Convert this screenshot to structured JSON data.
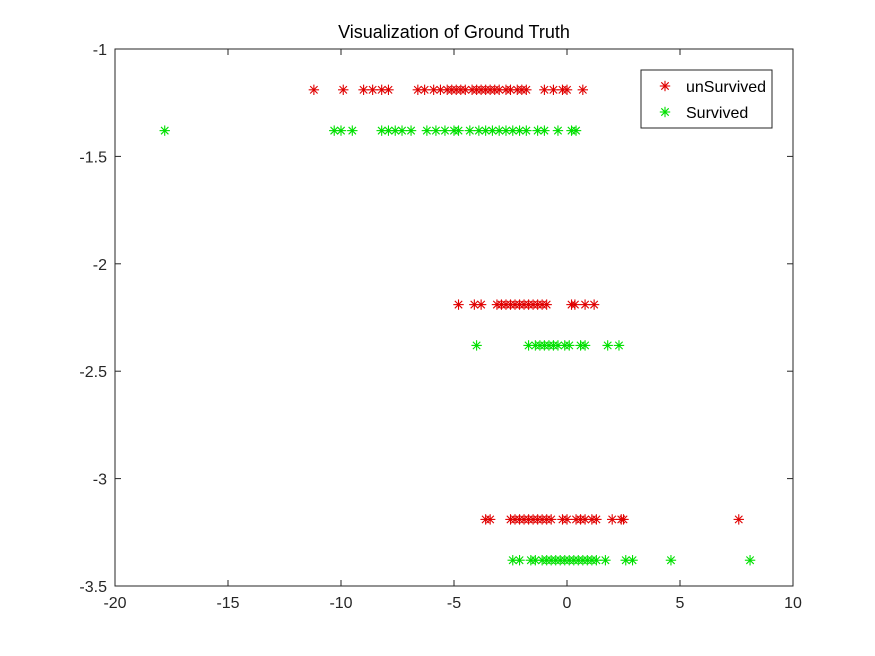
{
  "chart_data": {
    "type": "scatter",
    "title": "Visualization of Ground Truth",
    "xlabel": "",
    "ylabel": "",
    "xlim": [
      -20,
      10
    ],
    "ylim": [
      -3.5,
      -1
    ],
    "x_ticks": [
      -20,
      -15,
      -10,
      -5,
      0,
      5,
      10
    ],
    "y_ticks": [
      -1,
      -1.5,
      -2,
      -2.5,
      -3,
      -3.5
    ],
    "x_tick_labels": [
      "-20",
      "-15",
      "-10",
      "-5",
      "0",
      "5",
      "10"
    ],
    "y_tick_labels": [
      "-1",
      "-1.5",
      "-2",
      "-2.5",
      "-3",
      "-3.5"
    ],
    "grid": false,
    "legend_position": "top-right",
    "marker": "asterisk",
    "series": [
      {
        "name": "unSurvived",
        "color": "#e00000",
        "points": [
          [
            -11.2,
            -1.19
          ],
          [
            -9.9,
            -1.19
          ],
          [
            -9.0,
            -1.19
          ],
          [
            -8.6,
            -1.19
          ],
          [
            -8.2,
            -1.19
          ],
          [
            -7.9,
            -1.19
          ],
          [
            -6.6,
            -1.19
          ],
          [
            -6.3,
            -1.19
          ],
          [
            -5.9,
            -1.19
          ],
          [
            -5.6,
            -1.19
          ],
          [
            -5.3,
            -1.19
          ],
          [
            -5.1,
            -1.19
          ],
          [
            -4.9,
            -1.19
          ],
          [
            -4.7,
            -1.19
          ],
          [
            -4.5,
            -1.19
          ],
          [
            -4.2,
            -1.19
          ],
          [
            -4.0,
            -1.19
          ],
          [
            -3.8,
            -1.19
          ],
          [
            -3.6,
            -1.19
          ],
          [
            -3.4,
            -1.19
          ],
          [
            -3.2,
            -1.19
          ],
          [
            -3.0,
            -1.19
          ],
          [
            -2.7,
            -1.19
          ],
          [
            -2.5,
            -1.19
          ],
          [
            -2.2,
            -1.19
          ],
          [
            -2.0,
            -1.19
          ],
          [
            -1.8,
            -1.19
          ],
          [
            -1.0,
            -1.19
          ],
          [
            -0.6,
            -1.19
          ],
          [
            -0.2,
            -1.19
          ],
          [
            0.0,
            -1.19
          ],
          [
            0.7,
            -1.19
          ],
          [
            -4.8,
            -2.19
          ],
          [
            -4.1,
            -2.19
          ],
          [
            -3.8,
            -2.19
          ],
          [
            -3.1,
            -2.19
          ],
          [
            -2.9,
            -2.19
          ],
          [
            -2.7,
            -2.19
          ],
          [
            -2.5,
            -2.19
          ],
          [
            -2.3,
            -2.19
          ],
          [
            -2.1,
            -2.19
          ],
          [
            -1.9,
            -2.19
          ],
          [
            -1.7,
            -2.19
          ],
          [
            -1.5,
            -2.19
          ],
          [
            -1.3,
            -2.19
          ],
          [
            -1.1,
            -2.19
          ],
          [
            -0.9,
            -2.19
          ],
          [
            0.2,
            -2.19
          ],
          [
            0.35,
            -2.19
          ],
          [
            0.8,
            -2.19
          ],
          [
            1.2,
            -2.19
          ],
          [
            -3.6,
            -3.19
          ],
          [
            -3.4,
            -3.19
          ],
          [
            -2.5,
            -3.19
          ],
          [
            -2.3,
            -3.19
          ],
          [
            -2.1,
            -3.19
          ],
          [
            -1.9,
            -3.19
          ],
          [
            -1.7,
            -3.19
          ],
          [
            -1.5,
            -3.19
          ],
          [
            -1.3,
            -3.19
          ],
          [
            -1.1,
            -3.19
          ],
          [
            -0.9,
            -3.19
          ],
          [
            -0.7,
            -3.19
          ],
          [
            -0.2,
            -3.19
          ],
          [
            0.0,
            -3.19
          ],
          [
            0.4,
            -3.19
          ],
          [
            0.6,
            -3.19
          ],
          [
            0.8,
            -3.19
          ],
          [
            1.1,
            -3.19
          ],
          [
            1.3,
            -3.19
          ],
          [
            2.0,
            -3.19
          ],
          [
            2.4,
            -3.19
          ],
          [
            2.5,
            -3.19
          ],
          [
            7.6,
            -3.19
          ]
        ]
      },
      {
        "name": "Survived",
        "color": "#00e000",
        "points": [
          [
            -17.8,
            -1.38
          ],
          [
            -10.3,
            -1.38
          ],
          [
            -10.0,
            -1.38
          ],
          [
            -9.5,
            -1.38
          ],
          [
            -8.2,
            -1.38
          ],
          [
            -7.9,
            -1.38
          ],
          [
            -7.6,
            -1.38
          ],
          [
            -7.3,
            -1.38
          ],
          [
            -6.9,
            -1.38
          ],
          [
            -6.2,
            -1.38
          ],
          [
            -5.8,
            -1.38
          ],
          [
            -5.4,
            -1.38
          ],
          [
            -5.0,
            -1.38
          ],
          [
            -4.8,
            -1.38
          ],
          [
            -4.3,
            -1.38
          ],
          [
            -3.9,
            -1.38
          ],
          [
            -3.6,
            -1.38
          ],
          [
            -3.3,
            -1.38
          ],
          [
            -3.0,
            -1.38
          ],
          [
            -2.7,
            -1.38
          ],
          [
            -2.4,
            -1.38
          ],
          [
            -2.1,
            -1.38
          ],
          [
            -1.8,
            -1.38
          ],
          [
            -1.3,
            -1.38
          ],
          [
            -1.0,
            -1.38
          ],
          [
            -0.4,
            -1.38
          ],
          [
            0.2,
            -1.38
          ],
          [
            0.4,
            -1.38
          ],
          [
            -4.0,
            -2.38
          ],
          [
            -1.7,
            -2.38
          ],
          [
            -1.4,
            -2.38
          ],
          [
            -1.2,
            -2.38
          ],
          [
            -1.0,
            -2.38
          ],
          [
            -0.8,
            -2.38
          ],
          [
            -0.6,
            -2.38
          ],
          [
            -0.4,
            -2.38
          ],
          [
            -0.1,
            -2.38
          ],
          [
            0.1,
            -2.38
          ],
          [
            0.6,
            -2.38
          ],
          [
            0.8,
            -2.38
          ],
          [
            1.8,
            -2.38
          ],
          [
            2.3,
            -2.38
          ],
          [
            -2.4,
            -3.38
          ],
          [
            -2.1,
            -3.38
          ],
          [
            -1.6,
            -3.38
          ],
          [
            -1.4,
            -3.38
          ],
          [
            -1.1,
            -3.38
          ],
          [
            -0.9,
            -3.38
          ],
          [
            -0.7,
            -3.38
          ],
          [
            -0.5,
            -3.38
          ],
          [
            -0.3,
            -3.38
          ],
          [
            -0.1,
            -3.38
          ],
          [
            0.1,
            -3.38
          ],
          [
            0.3,
            -3.38
          ],
          [
            0.5,
            -3.38
          ],
          [
            0.7,
            -3.38
          ],
          [
            0.9,
            -3.38
          ],
          [
            1.1,
            -3.38
          ],
          [
            1.3,
            -3.38
          ],
          [
            1.7,
            -3.38
          ],
          [
            2.6,
            -3.38
          ],
          [
            2.9,
            -3.38
          ],
          [
            4.6,
            -3.38
          ],
          [
            8.1,
            -3.38
          ]
        ]
      }
    ]
  }
}
